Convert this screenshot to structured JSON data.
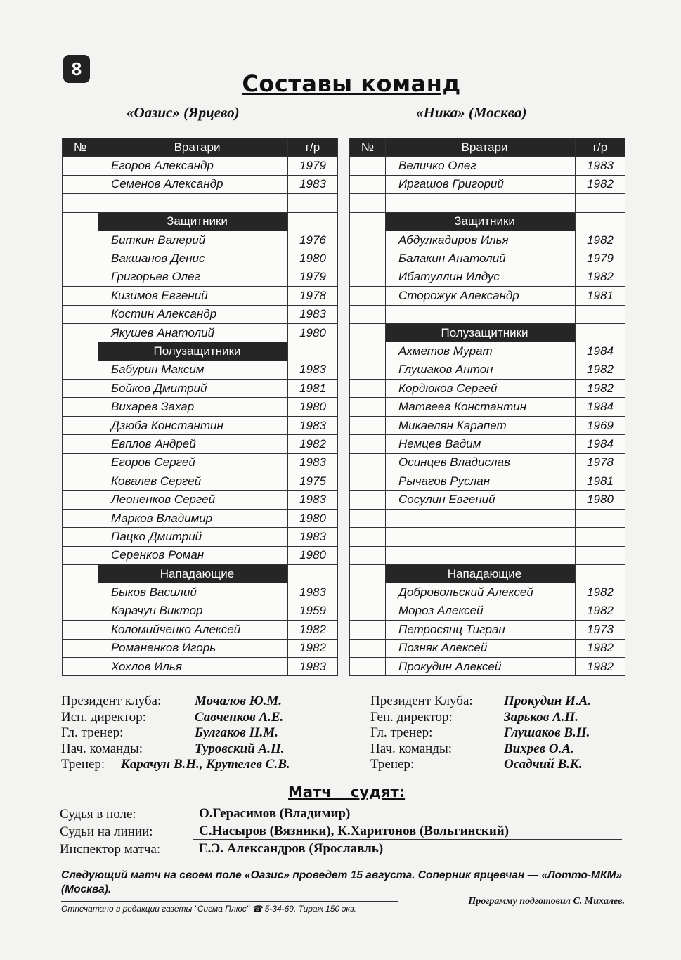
{
  "page_number": "8",
  "title": "Составы команд",
  "columns": {
    "num": "№",
    "year": "г/р"
  },
  "teams": [
    {
      "name": "«Оазис» (Ярцево)",
      "rows": [
        {
          "type": "head",
          "label": "Вратари"
        },
        {
          "name": "Егоров Александр",
          "year": "1979"
        },
        {
          "name": "Семенов Александр",
          "year": "1983"
        },
        {
          "type": "empty"
        },
        {
          "type": "section",
          "label": "Защитники"
        },
        {
          "name": "Биткин Валерий",
          "year": "1976"
        },
        {
          "name": "Вакшанов Денис",
          "year": "1980"
        },
        {
          "name": "Григорьев Олег",
          "year": "1979"
        },
        {
          "name": "Кизимов Евгений",
          "year": "1978"
        },
        {
          "name": "Костин Александр",
          "year": "1983"
        },
        {
          "name": "Якушев Анатолий",
          "year": "1980"
        },
        {
          "type": "section",
          "label": "Полузащитники"
        },
        {
          "name": "Бабурин Максим",
          "year": "1983"
        },
        {
          "name": "Бойков Дмитрий",
          "year": "1981"
        },
        {
          "name": "Вихарев Захар",
          "year": "1980"
        },
        {
          "name": "Дзюба Константин",
          "year": "1983"
        },
        {
          "name": "Евплов Андрей",
          "year": "1982"
        },
        {
          "name": "Егоров Сергей",
          "year": "1983"
        },
        {
          "name": "Ковалев Сергей",
          "year": "1975"
        },
        {
          "name": "Леоненков Сергей",
          "year": "1983"
        },
        {
          "name": "Марков Владимир",
          "year": "1980"
        },
        {
          "name": "Пацко Дмитрий",
          "year": "1983"
        },
        {
          "name": "Серенков Роман",
          "year": "1980"
        },
        {
          "type": "section",
          "label": "Нападающие"
        },
        {
          "name": "Быков Василий",
          "year": "1983"
        },
        {
          "name": "Карачун Виктор",
          "year": "1959"
        },
        {
          "name": "Коломийченко Алексей",
          "year": "1982"
        },
        {
          "name": "Романенков Игорь",
          "year": "1982"
        },
        {
          "name": "Хохлов Илья",
          "year": "1983"
        }
      ],
      "staff": [
        {
          "label": "Президент клуба:",
          "value": "Мочалов Ю.М."
        },
        {
          "label": "Исп. директор:",
          "value": "Савченков А.Е."
        },
        {
          "label": "Гл. тренер:",
          "value": "Булгаков Н.М."
        },
        {
          "label": "Нач. команды:",
          "value": "Туровский А.Н."
        },
        {
          "label": "Тренер:",
          "value": "Карачун В.Н., Крутелев С.В."
        }
      ]
    },
    {
      "name": "«Ника» (Москва)",
      "rows": [
        {
          "type": "head",
          "label": "Вратари"
        },
        {
          "name": "Величко Олег",
          "year": "1983"
        },
        {
          "name": "Иргашов Григорий",
          "year": "1982"
        },
        {
          "type": "empty"
        },
        {
          "type": "section",
          "label": "Защитники"
        },
        {
          "name": "Абдулкадиров Илья",
          "year": "1982"
        },
        {
          "name": "Балакин Анатолий",
          "year": "1979"
        },
        {
          "name": "Ибатуллин Илдус",
          "year": "1982"
        },
        {
          "name": "Сторожук Александр",
          "year": "1981"
        },
        {
          "type": "empty"
        },
        {
          "type": "section",
          "label": "Полузащитники"
        },
        {
          "name": "Ахметов Мурат",
          "year": "1984"
        },
        {
          "name": "Глушаков Антон",
          "year": "1982"
        },
        {
          "name": "Кордюков Сергей",
          "year": "1982"
        },
        {
          "name": "Матвеев Константин",
          "year": "1984"
        },
        {
          "name": "Микаелян Карапет",
          "year": "1969"
        },
        {
          "name": "Немцев Вадим",
          "year": "1984"
        },
        {
          "name": "Осинцев Владислав",
          "year": "1978"
        },
        {
          "name": "Рычагов Руслан",
          "year": "1981"
        },
        {
          "name": "Сосулин Евгений",
          "year": "1980"
        },
        {
          "type": "empty"
        },
        {
          "type": "empty"
        },
        {
          "type": "empty"
        },
        {
          "type": "section",
          "label": "Нападающие"
        },
        {
          "name": "Добровольский Алексей",
          "year": "1982"
        },
        {
          "name": "Мороз Алексей",
          "year": "1982"
        },
        {
          "name": "Петросянц Тигран",
          "year": "1973"
        },
        {
          "name": "Позняк Алексей",
          "year": "1982"
        },
        {
          "name": "Прокудин Алексей",
          "year": "1982"
        }
      ],
      "staff": [
        {
          "label": "Президент Клуба:",
          "value": "Прокудин И.А."
        },
        {
          "label": "Ген. директор:",
          "value": "Зарьков А.П."
        },
        {
          "label": "Гл. тренер:",
          "value": "Глушаков В.Н."
        },
        {
          "label": "Нач. команды:",
          "value": "Вихрев О.А."
        },
        {
          "label": "Тренер:",
          "value": "Осадчий В.К."
        }
      ]
    }
  ],
  "referees": {
    "title": "Матч судят:",
    "rows": [
      {
        "label": "Судья в поле:",
        "value": "О.Герасимов (Владимир)"
      },
      {
        "label": "Судьи на линии:",
        "value": "С.Насыров (Вязники), К.Харитонов (Вольгинский)"
      },
      {
        "label": "Инспектор матча:",
        "value": "Е.Э. Александров (Ярославль)"
      }
    ]
  },
  "next_match": "Следующий матч на своем поле «Оазис» проведет 15 августа. Соперник ярцевчан — «Лотто-МКМ» (Москва).",
  "printed": "Отпечатано в редакции газеты \"Сигма Плюс\" ☎ 5-34-69. Тираж 150 экз.",
  "prepared_by": "Программу подготовил С. Михалев."
}
